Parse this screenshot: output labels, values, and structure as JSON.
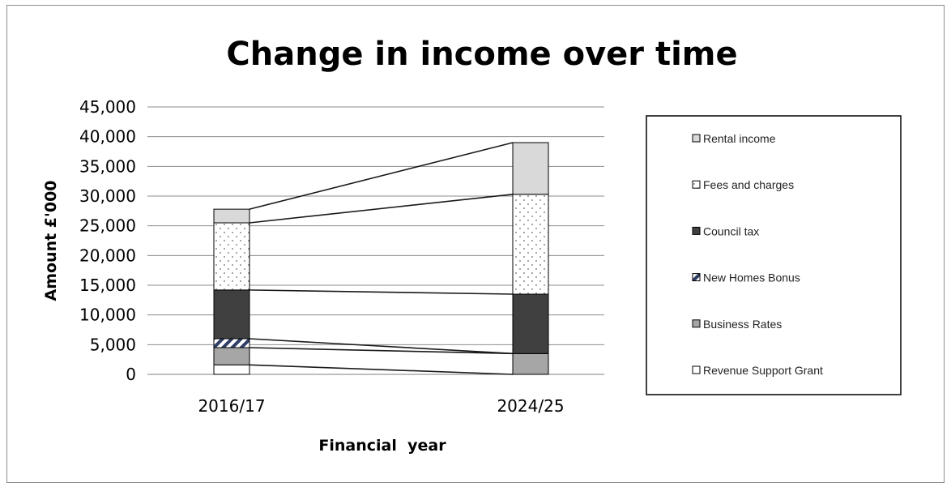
{
  "chart_data": {
    "type": "bar",
    "stacked": true,
    "title": "Change in income over time",
    "xlabel": "Financial  year",
    "ylabel": "Amount £'000",
    "ylim": [
      0,
      45000
    ],
    "yticks": [
      "0",
      "5,000",
      "10,000",
      "15,000",
      "20,000",
      "25,000",
      "30,000",
      "35,000",
      "40,000",
      "45,000"
    ],
    "categories": [
      "2016/17",
      "2024/25"
    ],
    "series": [
      {
        "name": "Revenue Support Grant",
        "values": [
          1600,
          0
        ],
        "fill": "#ffffff",
        "pattern": "none"
      },
      {
        "name": "Business Rates",
        "values": [
          2900,
          3500
        ],
        "fill": "#a6a6a6",
        "pattern": "none"
      },
      {
        "name": "New Homes Bonus",
        "values": [
          1500,
          0
        ],
        "fill": "#ffffff",
        "pattern": "hatch"
      },
      {
        "name": "Council tax",
        "values": [
          8200,
          10000
        ],
        "fill": "#404040",
        "pattern": "none"
      },
      {
        "name": "Fees and charges",
        "values": [
          11300,
          16800
        ],
        "fill": "#ffffff",
        "pattern": "dots"
      },
      {
        "name": "Rental income",
        "values": [
          2300,
          8700
        ],
        "fill": "#d9d9d9",
        "pattern": "none"
      }
    ],
    "legend_position": "right",
    "gridlines": true
  }
}
